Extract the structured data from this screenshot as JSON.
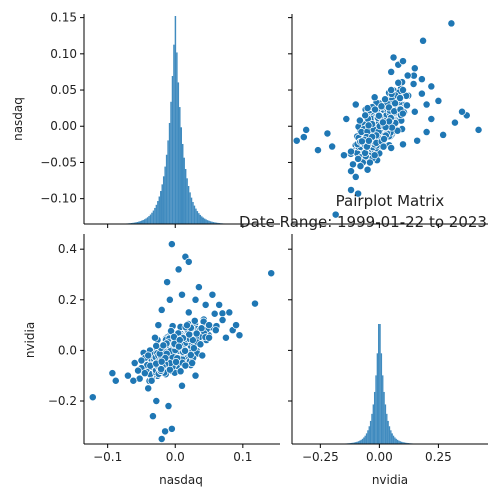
{
  "chart_data": {
    "type": "scatter",
    "kind": "pairplot",
    "title": "Pairplot Matrix",
    "subtitle": "Date Range: 1999-01-22 to 2023",
    "variables": [
      "nasdaq",
      "nvidia"
    ],
    "color": "#1f77b4",
    "grid": false,
    "axes": {
      "nasdaq": {
        "label": "nasdaq",
        "lim": [
          -0.135,
          0.155
        ],
        "ticks": [
          -0.1,
          0.0,
          0.1
        ],
        "tick_labels": [
          "−0.1",
          "0.0",
          "0.1"
        ],
        "y_ticks": [
          -0.1,
          -0.05,
          0.0,
          0.05,
          0.1,
          0.15
        ],
        "y_tick_labels": [
          "−0.10",
          "−0.05",
          "0.00",
          "0.05",
          "0.10",
          "0.15"
        ]
      },
      "nvidia": {
        "label": "nvidia",
        "lim": [
          -0.37,
          0.46
        ],
        "ticks": [
          -0.25,
          0.0,
          0.25
        ],
        "tick_labels": [
          "−0.25",
          "0.00",
          "0.25"
        ],
        "y_ticks": [
          -0.2,
          0.0,
          0.2,
          0.4
        ],
        "y_tick_labels": [
          "−0.2",
          "0.0",
          "0.2",
          "0.4"
        ]
      }
    },
    "histograms": [
      {
        "variable": "nasdaq",
        "distribution": "peaked near 0, sd ≈ 0.02"
      },
      {
        "variable": "nvidia",
        "distribution": "peaked near 0, sd ≈ 0.035"
      }
    ],
    "scatter_points": [
      {
        "nasdaq": -0.122,
        "nvidia": -0.185
      },
      {
        "nasdaq": -0.093,
        "nvidia": -0.09
      },
      {
        "nasdaq": -0.088,
        "nvidia": -0.12
      },
      {
        "nasdaq": -0.07,
        "nvidia": -0.1
      },
      {
        "nasdaq": -0.06,
        "nvidia": -0.05
      },
      {
        "nasdaq": -0.062,
        "nvidia": -0.12
      },
      {
        "nasdaq": -0.05,
        "nvidia": -0.04
      },
      {
        "nasdaq": -0.045,
        "nvidia": -0.09
      },
      {
        "nasdaq": -0.04,
        "nvidia": -0.15
      },
      {
        "nasdaq": -0.033,
        "nvidia": -0.26
      },
      {
        "nasdaq": -0.028,
        "nvidia": -0.2
      },
      {
        "nasdaq": -0.02,
        "nvidia": -0.35
      },
      {
        "nasdaq": -0.015,
        "nvidia": -0.32
      },
      {
        "nasdaq": -0.01,
        "nvidia": -0.22
      },
      {
        "nasdaq": -0.005,
        "nvidia": -0.31
      },
      {
        "nasdaq": -0.03,
        "nvidia": 0.05
      },
      {
        "nasdaq": -0.025,
        "nvidia": 0.1
      },
      {
        "nasdaq": -0.02,
        "nvidia": 0.16
      },
      {
        "nasdaq": -0.012,
        "nvidia": 0.27
      },
      {
        "nasdaq": -0.008,
        "nvidia": 0.2
      },
      {
        "nasdaq": -0.005,
        "nvidia": 0.42
      },
      {
        "nasdaq": 0.005,
        "nvidia": 0.32
      },
      {
        "nasdaq": 0.01,
        "nvidia": 0.22
      },
      {
        "nasdaq": 0.015,
        "nvidia": 0.37
      },
      {
        "nasdaq": 0.02,
        "nvidia": 0.15
      },
      {
        "nasdaq": 0.02,
        "nvidia": 0.35
      },
      {
        "nasdaq": 0.025,
        "nvidia": -0.05
      },
      {
        "nasdaq": 0.03,
        "nvidia": 0.2
      },
      {
        "nasdaq": 0.035,
        "nvidia": 0.25
      },
      {
        "nasdaq": 0.045,
        "nvidia": 0.18
      },
      {
        "nasdaq": 0.05,
        "nvidia": 0.1
      },
      {
        "nasdaq": 0.055,
        "nvidia": 0.22
      },
      {
        "nasdaq": 0.06,
        "nvidia": 0.08
      },
      {
        "nasdaq": 0.065,
        "nvidia": 0.18
      },
      {
        "nasdaq": 0.07,
        "nvidia": 0.12
      },
      {
        "nasdaq": 0.075,
        "nvidia": 0.05
      },
      {
        "nasdaq": 0.08,
        "nvidia": 0.15
      },
      {
        "nasdaq": 0.085,
        "nvidia": 0.08
      },
      {
        "nasdaq": 0.09,
        "nvidia": 0.1
      },
      {
        "nasdaq": 0.095,
        "nvidia": 0.06
      },
      {
        "nasdaq": 0.118,
        "nvidia": 0.185
      },
      {
        "nasdaq": 0.142,
        "nvidia": 0.305
      },
      {
        "nasdaq": 0.04,
        "nvidia": -0.02
      },
      {
        "nasdaq": 0.03,
        "nvidia": -0.1
      },
      {
        "nasdaq": 0.01,
        "nvidia": -0.14
      },
      {
        "nasdaq": 0.015,
        "nvidia": -0.06
      },
      {
        "nasdaq": -0.04,
        "nvidia": -0.02
      },
      {
        "nasdaq": -0.055,
        "nvidia": -0.08
      },
      {
        "nasdaq": -0.035,
        "nvidia": -0.12
      },
      {
        "nasdaq": 0.05,
        "nvidia": 0.05
      }
    ]
  }
}
